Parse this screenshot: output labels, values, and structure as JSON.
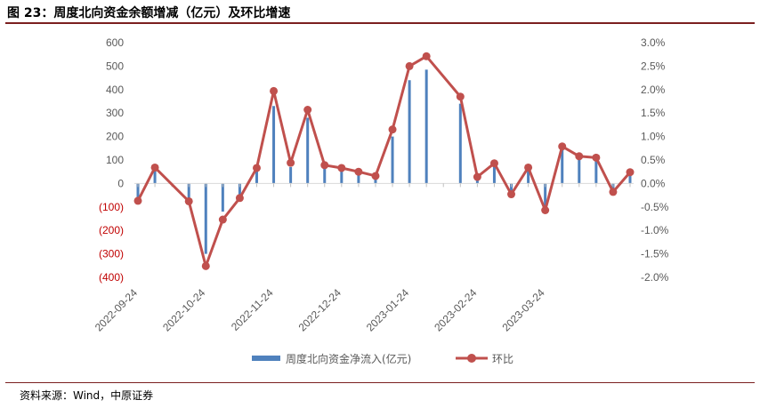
{
  "header": {
    "title": "图 23：周度北向资金余额增减（亿元）及环比增速"
  },
  "footer": {
    "source": "资料来源：Wind，中原证券"
  },
  "colors": {
    "bar": "#4f81bd",
    "line": "#c0504d",
    "negative_tick": "#c00000",
    "tick": "#595959"
  },
  "chart_data": {
    "type": "bar+line",
    "title": "",
    "xlabel": "",
    "ylabel": "",
    "ylim": [
      -400,
      600
    ],
    "y2lim": [
      -0.02,
      0.03
    ],
    "y_ticks": [
      "600",
      "500",
      "400",
      "300",
      "200",
      "100",
      "0",
      "(100)",
      "(200)",
      "(300)",
      "(400)"
    ],
    "y2_ticks": [
      "3.0%",
      "2.5%",
      "2.0%",
      "1.5%",
      "1.0%",
      "0.5%",
      "0.0%",
      "-0.5%",
      "-1.0%",
      "-1.5%",
      "-2.0%"
    ],
    "x_tick_labels": [
      "2022-09-24",
      "2022-10-24",
      "2022-11-24",
      "2022-12-24",
      "2023-01-24",
      "2023-02-24",
      "2023-03-24"
    ],
    "x_tick_index": [
      0,
      4,
      8,
      12,
      16,
      20,
      24
    ],
    "legend_position": "bottom",
    "series": [
      {
        "name": "周度北向资金净流入(亿元)",
        "type": "bar",
        "axis": "left",
        "values": [
          -70,
          60,
          0,
          -80,
          -300,
          -120,
          -60,
          60,
          330,
          70,
          280,
          70,
          55,
          40,
          25,
          200,
          440,
          485,
          0,
          340,
          30,
          70,
          -40,
          60,
          -100,
          150,
          120,
          110,
          -30,
          40
        ]
      },
      {
        "name": "环比",
        "type": "line",
        "axis": "right",
        "values": [
          -0.0037,
          0.0034,
          null,
          -0.0038,
          -0.0176,
          -0.0077,
          -0.0031,
          0.0033,
          0.0197,
          0.0044,
          0.0157,
          0.0039,
          0.0033,
          0.0025,
          0.0016,
          0.0115,
          0.025,
          0.0271,
          null,
          0.0185,
          0.0014,
          0.0043,
          -0.0023,
          0.0034,
          -0.0057,
          0.0079,
          0.0058,
          0.0055,
          -0.0018,
          0.0024
        ]
      }
    ]
  }
}
